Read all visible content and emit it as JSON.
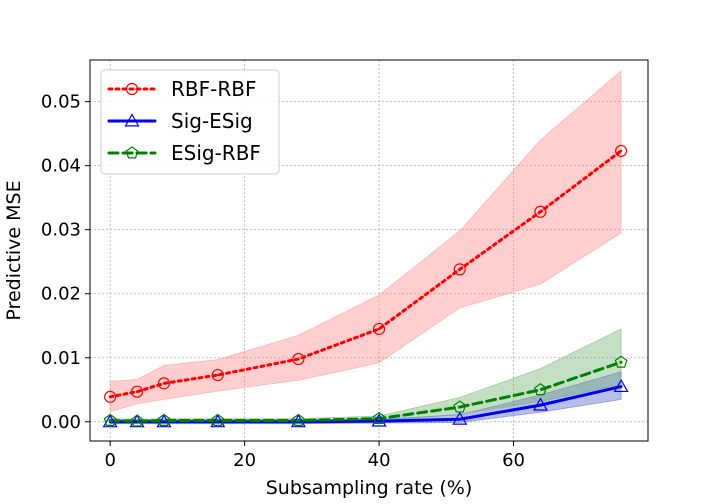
{
  "chart_data": {
    "type": "line",
    "title": "",
    "xlabel": "Subsampling rate (%)",
    "ylabel": "Predictive MSE",
    "xlim": [
      -3,
      80
    ],
    "ylim": [
      -0.003,
      0.0565
    ],
    "x_ticks": [
      0,
      20,
      40,
      60
    ],
    "x_tick_labels": [
      "0",
      "20",
      "40",
      "60"
    ],
    "y_ticks": [
      0.0,
      0.01,
      0.02,
      0.03,
      0.04,
      0.05
    ],
    "y_tick_labels": [
      "0.00",
      "0.01",
      "0.02",
      "0.03",
      "0.04",
      "0.05"
    ],
    "grid": true,
    "legend_position": "top-left",
    "series": [
      {
        "name": "RBF-RBF",
        "color": "#ff0000",
        "band_color": "#ff8080",
        "line_style": "dotted",
        "marker": "circle",
        "x": [
          0,
          4,
          8,
          16,
          28,
          40,
          52,
          64,
          76
        ],
        "y": [
          0.0039,
          0.0047,
          0.006,
          0.0073,
          0.0098,
          0.0145,
          0.0238,
          0.0328,
          0.0423
        ],
        "lower": [
          0.0016,
          0.0028,
          0.0035,
          0.0048,
          0.0065,
          0.0092,
          0.0178,
          0.0215,
          0.0295
        ],
        "upper": [
          0.0063,
          0.0066,
          0.0088,
          0.0097,
          0.0135,
          0.0198,
          0.0298,
          0.044,
          0.0548
        ]
      },
      {
        "name": "Sig-ESig",
        "color": "#0000ee",
        "band_color": "#4455cc",
        "line_style": "solid",
        "marker": "triangle",
        "x": [
          0,
          4,
          8,
          16,
          28,
          40,
          52,
          64,
          76
        ],
        "y": [
          0.0,
          0.0,
          0.0,
          0.0,
          0.0,
          0.0001,
          0.0004,
          0.0026,
          0.0055
        ],
        "lower": [
          -0.0003,
          -0.0003,
          -0.0003,
          -0.0003,
          -0.0003,
          -0.0002,
          -0.0001,
          0.0015,
          0.0035
        ],
        "upper": [
          0.0003,
          0.0003,
          0.0003,
          0.0003,
          0.0003,
          0.0004,
          0.0011,
          0.0042,
          0.0078
        ]
      },
      {
        "name": "ESig-RBF",
        "color": "#008000",
        "band_color": "#66aa66",
        "line_style": "dashed",
        "marker": "pentagon",
        "x": [
          0,
          4,
          8,
          16,
          28,
          40,
          52,
          64,
          76
        ],
        "y": [
          0.0002,
          0.0001,
          0.0002,
          0.0002,
          0.0002,
          0.0005,
          0.0023,
          0.005,
          0.0093
        ],
        "lower": [
          -0.0001,
          -0.0001,
          -0.0001,
          -0.0001,
          -0.0001,
          0.0001,
          0.0012,
          0.0032,
          0.0058
        ],
        "upper": [
          0.0005,
          0.0004,
          0.0005,
          0.0005,
          0.0005,
          0.0009,
          0.0038,
          0.0083,
          0.0145
        ]
      }
    ]
  }
}
